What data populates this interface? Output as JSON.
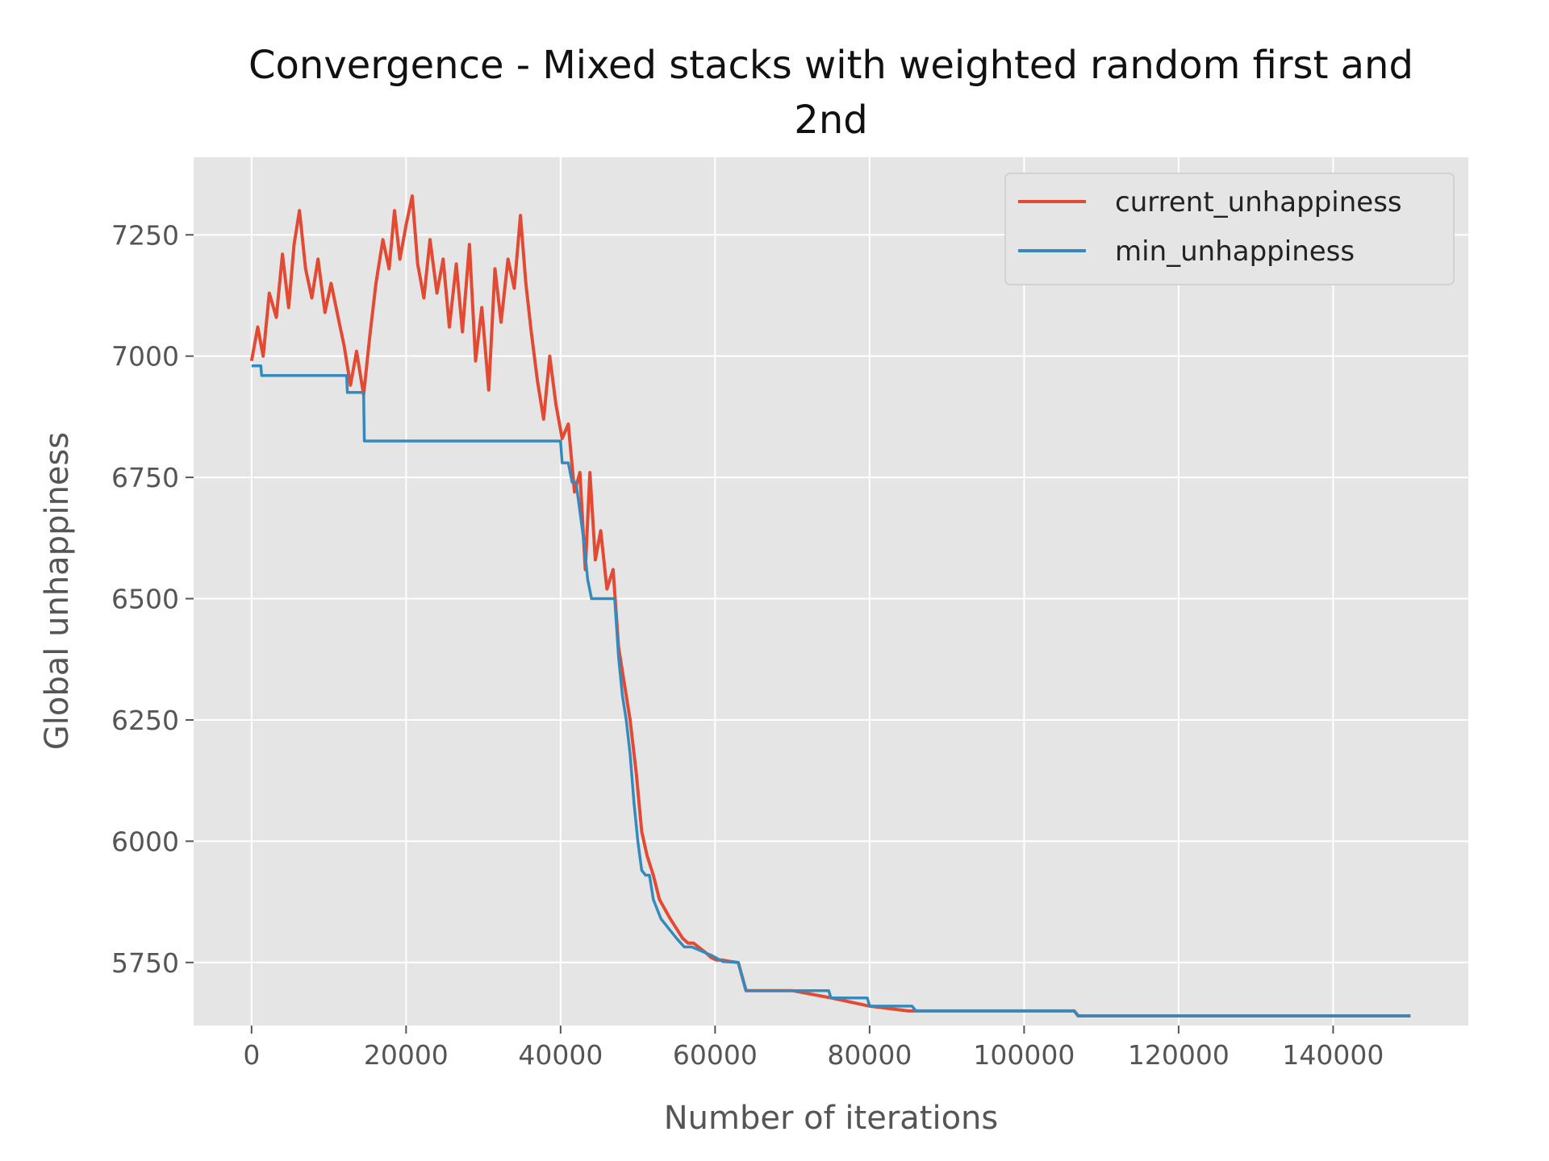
{
  "chart_data": {
    "type": "line",
    "title_line1": "Convergence - Mixed stacks with weighted random first and",
    "title_line2": "2nd",
    "xlabel": "Number of iterations",
    "ylabel": "Global unhappiness",
    "xlim": [
      -7500,
      157500
    ],
    "ylim": [
      5620,
      7410
    ],
    "x_ticks": [
      0,
      20000,
      40000,
      60000,
      80000,
      100000,
      120000,
      140000
    ],
    "x_tick_labels": [
      "0",
      "20000",
      "40000",
      "60000",
      "80000",
      "100000",
      "120000",
      "140000"
    ],
    "y_ticks": [
      5750,
      6000,
      6250,
      6500,
      6750,
      7000,
      7250
    ],
    "y_tick_labels": [
      "5750",
      "6000",
      "6250",
      "6500",
      "6750",
      "7000",
      "7250"
    ],
    "grid": true,
    "legend_position": "top-right",
    "background": "#e5e5e5",
    "series": [
      {
        "name": "current_unhappiness",
        "color": "#e24a33",
        "x": [
          0,
          800,
          1500,
          2300,
          3200,
          4000,
          4800,
          5500,
          6200,
          7000,
          7800,
          8600,
          9500,
          10300,
          11200,
          12000,
          12800,
          13600,
          14500,
          15300,
          16100,
          17000,
          17800,
          18500,
          19200,
          20000,
          20800,
          21500,
          22300,
          23100,
          24000,
          24800,
          25600,
          26500,
          27300,
          28200,
          29000,
          29800,
          30700,
          31500,
          32300,
          33200,
          34000,
          34800,
          35500,
          36200,
          37000,
          37800,
          38600,
          39400,
          40200,
          41000,
          41800,
          42500,
          43200,
          43800,
          44500,
          45200,
          46000,
          46800,
          47500,
          48200,
          49000,
          49800,
          50500,
          51200,
          52000,
          52800,
          53500,
          54200,
          55000,
          55800,
          56500,
          57200,
          58000,
          58800,
          59500,
          60200,
          61000,
          62000,
          63000,
          64000,
          66000,
          70000,
          75000,
          80000,
          85000,
          90000,
          100000,
          106500,
          107000,
          120000,
          140000,
          150000
        ],
        "y": [
          6990,
          7060,
          7000,
          7130,
          7080,
          7210,
          7100,
          7230,
          7300,
          7180,
          7120,
          7200,
          7090,
          7150,
          7080,
          7020,
          6940,
          7010,
          6920,
          7040,
          7150,
          7240,
          7180,
          7300,
          7200,
          7270,
          7330,
          7190,
          7120,
          7240,
          7130,
          7200,
          7060,
          7190,
          7050,
          7230,
          6990,
          7100,
          6930,
          7180,
          7070,
          7200,
          7140,
          7290,
          7150,
          7050,
          6950,
          6870,
          7000,
          6900,
          6830,
          6860,
          6720,
          6760,
          6560,
          6760,
          6580,
          6640,
          6520,
          6560,
          6400,
          6330,
          6250,
          6140,
          6020,
          5970,
          5930,
          5880,
          5860,
          5840,
          5820,
          5800,
          5790,
          5790,
          5780,
          5770,
          5760,
          5755,
          5755,
          5752,
          5750,
          5692,
          5692,
          5692,
          5677,
          5660,
          5650,
          5650,
          5650,
          5650,
          5640,
          5640,
          5640,
          5640
        ]
      },
      {
        "name": "min_unhappiness",
        "color": "#348abd",
        "x": [
          0,
          1200,
          1300,
          12300,
          12400,
          14500,
          14600,
          40000,
          40200,
          41000,
          41500,
          42000,
          42500,
          43000,
          43500,
          44000,
          47000,
          47500,
          48000,
          48500,
          49000,
          49500,
          50000,
          50500,
          51000,
          51500,
          52000,
          52500,
          53000,
          54000,
          55000,
          56000,
          57000,
          58000,
          59500,
          61000,
          63000,
          64000,
          66000,
          74700,
          75000,
          79700,
          80000,
          85500,
          86000,
          106500,
          107000,
          150000
        ],
        "y": [
          6980,
          6980,
          6960,
          6960,
          6925,
          6925,
          6825,
          6825,
          6780,
          6780,
          6740,
          6740,
          6680,
          6620,
          6540,
          6500,
          6500,
          6380,
          6300,
          6250,
          6180,
          6080,
          6000,
          5940,
          5930,
          5930,
          5880,
          5860,
          5840,
          5820,
          5800,
          5782,
          5782,
          5775,
          5765,
          5752,
          5750,
          5692,
          5692,
          5692,
          5677,
          5677,
          5660,
          5660,
          5650,
          5650,
          5640,
          5640
        ]
      }
    ]
  }
}
